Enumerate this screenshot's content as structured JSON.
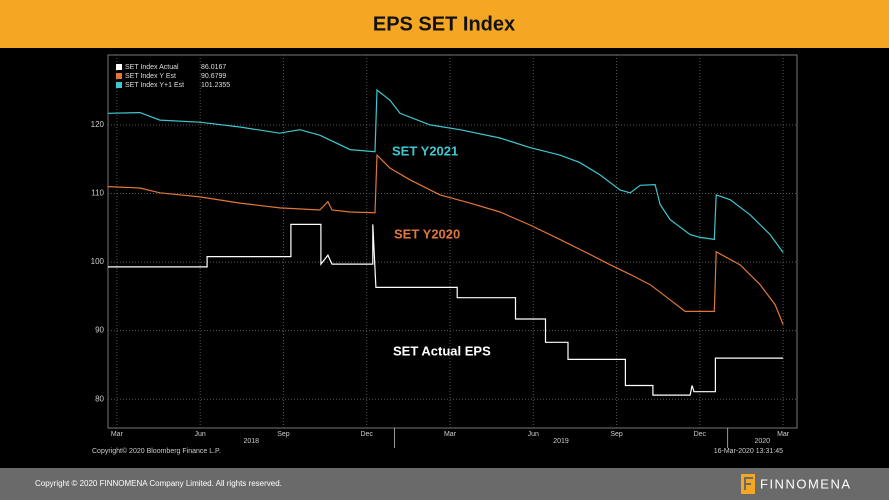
{
  "header": {
    "title": "EPS SET Index"
  },
  "footer": {
    "copyright": "Copyright © 2020 FINNOMENA Company Limited. All rights reserved.",
    "brand": "FINNOMENA"
  },
  "chart_data": {
    "type": "line",
    "source": "Copyright© 2020 Bloomberg Finance L.P.",
    "timestamp": "16-Mar-2020 13:31:45",
    "annotations": [
      "SET Y2021",
      "SET Y2020",
      "SET Actual EPS"
    ],
    "xlim": [
      1.68,
      26.5
    ],
    "ylim": [
      75.8,
      130.2
    ],
    "yticks": [
      80,
      90,
      100,
      110,
      120
    ],
    "xticks": [
      {
        "value": 2,
        "label": "Mar"
      },
      {
        "value": 5,
        "label": "Jun"
      },
      {
        "value": 8,
        "label": "Sep"
      },
      {
        "value": 11,
        "label": "Dec"
      },
      {
        "value": 14,
        "label": "Mar"
      },
      {
        "value": 17,
        "label": "Jun"
      },
      {
        "value": 20,
        "label": "Sep"
      },
      {
        "value": 23,
        "label": "Dec"
      },
      {
        "value": 26,
        "label": "Mar"
      }
    ],
    "year_ticks": [
      {
        "value": 0,
        "label": "2018"
      },
      {
        "value": 12,
        "label": "2019"
      },
      {
        "value": 24,
        "label": "2020"
      }
    ],
    "grid": true,
    "legend": "top-left",
    "series": [
      {
        "name": "SET Index Actual",
        "last": 86.0167,
        "color": "#ffffff",
        "x": [
          1.68,
          5.25,
          5.25,
          8.27,
          8.27,
          9.35,
          9.35,
          9.6,
          9.75,
          11.22,
          11.22,
          11.33,
          14.26,
          14.26,
          16.36,
          16.36,
          17.44,
          17.44,
          18.25,
          18.25,
          20.32,
          20.32,
          21.31,
          21.31,
          22.65,
          22.72,
          22.79,
          23.56,
          23.56,
          26.0
        ],
        "values": [
          99.3,
          99.3,
          100.8,
          100.8,
          105.5,
          105.5,
          99.7,
          101.0,
          99.7,
          99.7,
          105.5,
          96.3,
          96.3,
          94.8,
          94.8,
          91.7,
          91.7,
          88.3,
          88.3,
          85.8,
          85.8,
          82.0,
          82.0,
          80.6,
          80.6,
          82.0,
          81.1,
          81.1,
          86.0,
          86.0
        ]
      },
      {
        "name": "SET Index Y Est",
        "last": 90.6799,
        "color": "#e0763a",
        "x": [
          1.68,
          2.83,
          3.55,
          4.99,
          6.43,
          7.87,
          9.31,
          9.6,
          9.75,
          10.4,
          11.3,
          11.37,
          11.84,
          12.56,
          13.64,
          14.72,
          15.8,
          16.88,
          17.96,
          19.05,
          19.77,
          20.49,
          21.21,
          21.93,
          22.47,
          23.01,
          23.52,
          23.59,
          24.45,
          25.17,
          25.71,
          26.0
        ],
        "values": [
          111.0,
          110.8,
          110.1,
          109.5,
          108.6,
          107.9,
          107.6,
          108.8,
          107.6,
          107.3,
          107.2,
          115.6,
          113.7,
          112.0,
          109.8,
          108.6,
          107.3,
          105.4,
          103.3,
          101.1,
          99.6,
          98.2,
          96.7,
          94.5,
          92.8,
          92.8,
          92.8,
          101.5,
          99.6,
          96.7,
          93.8,
          90.9
        ]
      },
      {
        "name": "SET Index Y+1 Est",
        "last": 101.2355,
        "color": "#3fc7d0",
        "x": [
          1.68,
          2.83,
          3.55,
          4.99,
          6.43,
          7.87,
          8.59,
          9.31,
          10.4,
          11.3,
          11.37,
          11.84,
          12.2,
          13.28,
          14.36,
          15.8,
          16.88,
          17.96,
          18.68,
          19.41,
          20.13,
          20.49,
          20.85,
          21.39,
          21.57,
          21.93,
          22.65,
          23.01,
          23.52,
          23.59,
          24.09,
          24.81,
          25.53,
          26.0
        ],
        "values": [
          121.7,
          121.8,
          120.7,
          120.4,
          119.7,
          118.8,
          119.3,
          118.5,
          116.4,
          116.1,
          125.1,
          123.6,
          121.7,
          120.0,
          119.3,
          118.1,
          116.7,
          115.6,
          114.5,
          112.7,
          110.5,
          110.1,
          111.2,
          111.3,
          108.4,
          106.2,
          104.0,
          103.6,
          103.3,
          109.8,
          109.1,
          106.9,
          104.0,
          101.4
        ]
      }
    ]
  }
}
